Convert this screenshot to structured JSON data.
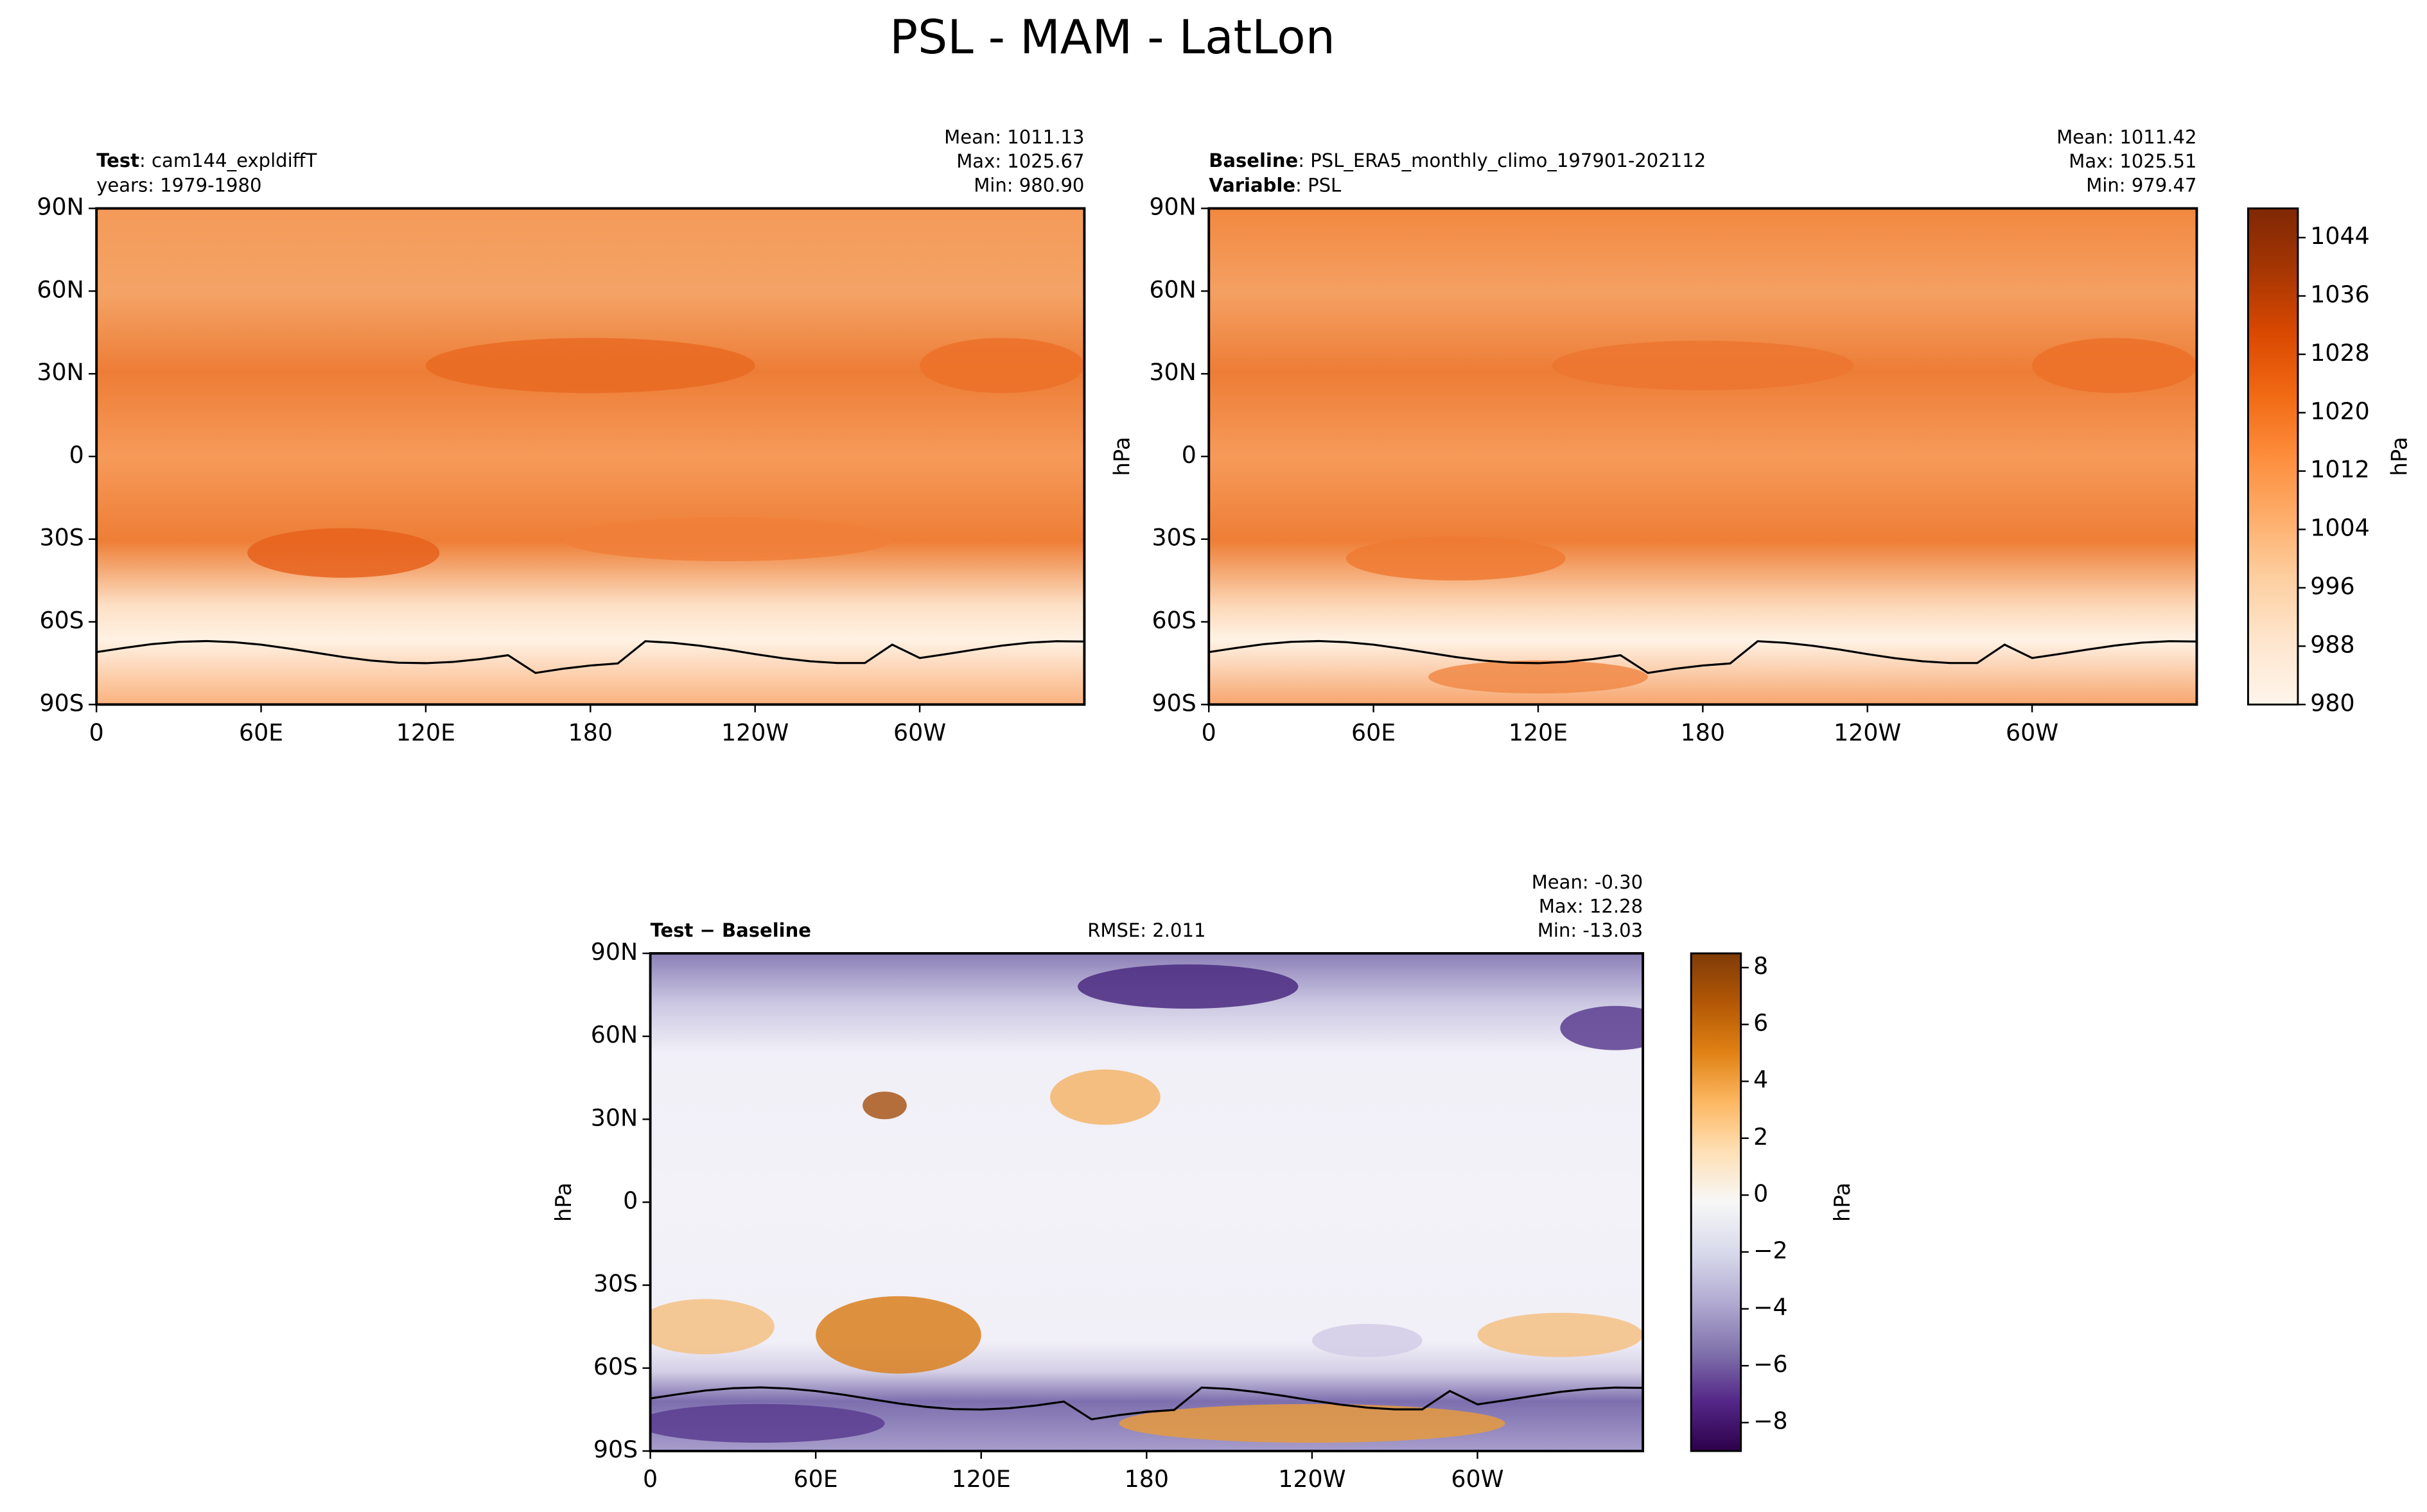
{
  "title": "PSL - MAM - LatLon",
  "chart_data": [
    {
      "type": "contour",
      "left_lines": [
        {
          "key": "Test",
          "text": ": cam144_expldiffT"
        },
        {
          "text": "years: 1979-1980"
        }
      ],
      "stats": [
        "Mean: 1011.13",
        "Max: 1025.67",
        "Min: 980.90"
      ],
      "xlim": [
        0,
        360
      ],
      "ylim": [
        -90,
        90
      ],
      "xticks": [
        0,
        {
          "value": 60,
          "label": "60E"
        },
        {
          "value": 120,
          "label": "120E"
        },
        180,
        {
          "value": 240,
          "label": "120W"
        },
        {
          "value": 300,
          "label": "60W"
        }
      ],
      "yticks": [
        {
          "value": 90,
          "label": "90N"
        },
        {
          "value": 60,
          "label": "60N"
        },
        {
          "value": 30,
          "label": "30N"
        },
        0,
        {
          "value": -30,
          "label": "30S"
        },
        {
          "value": -60,
          "label": "60S"
        },
        {
          "value": -90,
          "label": "90S"
        }
      ]
    },
    {
      "type": "contour",
      "left_lines": [
        {
          "key": "Baseline",
          "text": ": PSL_ERA5_monthly_climo_197901-202112"
        },
        {
          "key": "Variable",
          "text": ": PSL"
        }
      ],
      "stats": [
        "Mean: 1011.42",
        "Max: 1025.51",
        "Min: 979.47"
      ],
      "ylabel": "hPa",
      "xlim": [
        0,
        360
      ],
      "ylim": [
        -90,
        90
      ],
      "xticks": [
        0,
        {
          "value": 60,
          "label": "60E"
        },
        {
          "value": 120,
          "label": "120E"
        },
        180,
        {
          "value": 240,
          "label": "120W"
        },
        {
          "value": 300,
          "label": "60W"
        }
      ],
      "yticks": [
        {
          "value": 90,
          "label": "90N"
        },
        {
          "value": 60,
          "label": "60N"
        },
        {
          "value": 30,
          "label": "30N"
        },
        0,
        {
          "value": -30,
          "label": "30S"
        },
        {
          "value": -60,
          "label": "60S"
        },
        {
          "value": -90,
          "label": "90S"
        }
      ],
      "colorbar": {
        "label": "hPa",
        "clim": [
          980,
          1048
        ],
        "ticks": [
          980,
          988,
          996,
          1004,
          1012,
          1020,
          1028,
          1036,
          1044
        ],
        "cmap": [
          "#fff5eb",
          "#fee6ce",
          "#fdd0a2",
          "#fdae6b",
          "#fd8d3c",
          "#f16913",
          "#d94801",
          "#a63603",
          "#7f2704"
        ]
      }
    },
    {
      "type": "contour",
      "left_lines": [
        {
          "key": "Test − Baseline"
        }
      ],
      "center_text": "RMSE: 2.011",
      "stats": [
        "Mean: -0.30",
        "Max: 12.28",
        "Min: -13.03"
      ],
      "ylabel": "hPa",
      "xlim": [
        0,
        360
      ],
      "ylim": [
        -90,
        90
      ],
      "xticks": [
        0,
        {
          "value": 60,
          "label": "60E"
        },
        {
          "value": 120,
          "label": "120E"
        },
        180,
        {
          "value": 240,
          "label": "120W"
        },
        {
          "value": 300,
          "label": "60W"
        }
      ],
      "yticks": [
        {
          "value": 90,
          "label": "90N"
        },
        {
          "value": 60,
          "label": "60N"
        },
        {
          "value": 30,
          "label": "30N"
        },
        0,
        {
          "value": -30,
          "label": "30S"
        },
        {
          "value": -60,
          "label": "60S"
        },
        {
          "value": -90,
          "label": "90S"
        }
      ],
      "colorbar": {
        "label": "hPa",
        "clim": [
          -9,
          8.5
        ],
        "ticks": [
          {
            "value": -8,
            "label": "−8"
          },
          {
            "value": -6,
            "label": "−6"
          },
          {
            "value": -4,
            "label": "−4"
          },
          {
            "value": -2,
            "label": "−2"
          },
          0,
          2,
          4,
          6,
          8
        ],
        "cmap": [
          "#2d004b",
          "#542788",
          "#8073ac",
          "#b2abd2",
          "#d8daeb",
          "#f7f7f7",
          "#fee0b6",
          "#fdb863",
          "#e08214",
          "#b35806",
          "#7f3b08"
        ]
      }
    }
  ]
}
